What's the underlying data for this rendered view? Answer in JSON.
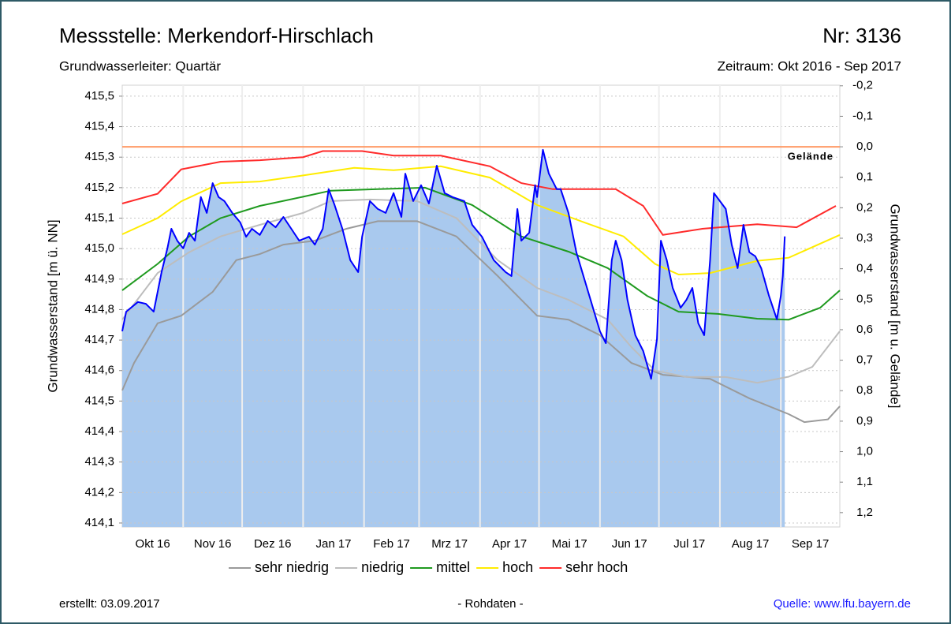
{
  "chart_data": {
    "type": "line",
    "title": "Messstelle: Merkendorf-Hirschlach",
    "station_number": "Nr: 3136",
    "aquifer": "Grundwasserleiter: Quartär",
    "period": "Zeitraum: Okt 2016 - Sep 2017",
    "ylabel": "Grundwasserstand [m ü. NN]",
    "y2label": "Grundwasserstand [m u. Gelände]",
    "created": "erstellt:  03.09.2017",
    "note": "- Rohdaten -",
    "source": "Quelle: www.lfu.bayern.de",
    "xlim": [
      0,
      365
    ],
    "xticks": [
      {
        "value": 15.5,
        "label": "Okt 16"
      },
      {
        "value": 46,
        "label": "Nov 16"
      },
      {
        "value": 76.5,
        "label": "Dez 16"
      },
      {
        "value": 107.5,
        "label": "Jan 17"
      },
      {
        "value": 137,
        "label": "Feb 17"
      },
      {
        "value": 166.5,
        "label": "Mrz 17"
      },
      {
        "value": 197,
        "label": "Apr 17"
      },
      {
        "value": 227.5,
        "label": "Mai 17"
      },
      {
        "value": 258,
        "label": "Jun 17"
      },
      {
        "value": 288.5,
        "label": "Jul 17"
      },
      {
        "value": 319.5,
        "label": "Aug 17"
      },
      {
        "value": 350,
        "label": "Sep 17"
      }
    ],
    "x_gridlines": [
      31,
      61,
      92,
      123,
      151,
      182,
      212,
      243,
      273,
      304,
      335
    ],
    "ylim": [
      414.087,
      415.536
    ],
    "yticks": [
      {
        "value": 414.1,
        "label": "414,1"
      },
      {
        "value": 414.2,
        "label": "414,2"
      },
      {
        "value": 414.3,
        "label": "414,3"
      },
      {
        "value": 414.4,
        "label": "414,4"
      },
      {
        "value": 414.5,
        "label": "414,5"
      },
      {
        "value": 414.6,
        "label": "414,6"
      },
      {
        "value": 414.7,
        "label": "414,7"
      },
      {
        "value": 414.8,
        "label": "414,8"
      },
      {
        "value": 414.9,
        "label": "414,9"
      },
      {
        "value": 415.0,
        "label": "415,0"
      },
      {
        "value": 415.1,
        "label": "415,1"
      },
      {
        "value": 415.2,
        "label": "415,2"
      },
      {
        "value": 415.3,
        "label": "415,3"
      },
      {
        "value": 415.4,
        "label": "415,4"
      },
      {
        "value": 415.5,
        "label": "415,5"
      }
    ],
    "y2lim": [
      1.247,
      -0.202
    ],
    "y2ticks": [
      {
        "value": -0.2,
        "label": "-0,2"
      },
      {
        "value": -0.1,
        "label": "-0,1"
      },
      {
        "value": 0,
        "label": "0,0"
      },
      {
        "value": 0.1,
        "label": "0,1"
      },
      {
        "value": 0.2,
        "label": "0,2"
      },
      {
        "value": 0.3,
        "label": "0,3"
      },
      {
        "value": 0.4,
        "label": "0,4"
      },
      {
        "value": 0.5,
        "label": "0,5"
      },
      {
        "value": 0.6,
        "label": "0,6"
      },
      {
        "value": 0.7,
        "label": "0,7"
      },
      {
        "value": 0.8,
        "label": "0,8"
      },
      {
        "value": 0.9,
        "label": "0,9"
      },
      {
        "value": 1.0,
        "label": "1,0"
      },
      {
        "value": 1.1,
        "label": "1,1"
      },
      {
        "value": 1.2,
        "label": "1,2"
      }
    ],
    "grid": true,
    "reference": {
      "label": "Gelände",
      "value": 0,
      "axis": "y2",
      "color": "#ff9a66"
    },
    "series": [
      {
        "name": "sehr niedrig",
        "color": "#9a9a9a",
        "x": [
          0,
          6,
          18,
          30,
          46,
          58,
          70,
          82,
          98,
          114,
          130,
          150,
          170,
          191,
          211,
          227,
          243,
          259,
          275,
          299,
          319,
          339,
          347,
          359,
          365
        ],
        "values": [
          414.535,
          414.625,
          414.755,
          414.78,
          414.858,
          414.962,
          414.982,
          415.013,
          415.026,
          415.065,
          415.09,
          415.09,
          415.04,
          414.91,
          414.78,
          414.767,
          414.716,
          414.625,
          414.586,
          414.573,
          414.509,
          414.457,
          414.431,
          414.44,
          414.483
        ]
      },
      {
        "name": "niedrig",
        "color": "#bdbdbd",
        "x": [
          0,
          18,
          34,
          50,
          70,
          92,
          106,
          126,
          150,
          170,
          191,
          211,
          227,
          247,
          259,
          271,
          287,
          307,
          323,
          339,
          351,
          365
        ],
        "values": [
          414.767,
          414.92,
          414.988,
          415.04,
          415.078,
          415.117,
          415.156,
          415.161,
          415.156,
          415.1,
          414.962,
          414.871,
          414.832,
          414.767,
          414.677,
          414.6,
          414.579,
          414.579,
          414.56,
          414.58,
          414.612,
          414.729
        ]
      },
      {
        "name": "mittel",
        "color": "#1f9a1f",
        "x": [
          0,
          18,
          34,
          50,
          70,
          92,
          106,
          130,
          154,
          178,
          203,
          227,
          247,
          267,
          283,
          303,
          323,
          339,
          355,
          365
        ],
        "values": [
          414.863,
          414.95,
          415.04,
          415.1,
          415.14,
          415.17,
          415.19,
          415.195,
          415.2,
          415.143,
          415.04,
          414.99,
          414.936,
          414.845,
          414.793,
          414.786,
          414.77,
          414.767,
          414.806,
          414.863
        ]
      },
      {
        "name": "hoch",
        "color": "#ffec00",
        "x": [
          0,
          18,
          30,
          50,
          70,
          92,
          118,
          138,
          162,
          187,
          211,
          235,
          255,
          271,
          283,
          299,
          323,
          339,
          365
        ],
        "values": [
          415.047,
          415.1,
          415.155,
          415.215,
          415.22,
          415.24,
          415.265,
          415.257,
          415.27,
          415.233,
          415.143,
          415.086,
          415.04,
          414.95,
          414.915,
          414.92,
          414.96,
          414.97,
          415.045
        ]
      },
      {
        "name": "sehr hoch",
        "color": "#ff2a2a",
        "x": [
          0,
          18,
          30,
          50,
          70,
          92,
          102,
          122,
          138,
          162,
          187,
          203,
          219,
          251,
          265,
          275,
          295,
          323,
          343,
          363
        ],
        "values": [
          415.148,
          415.18,
          415.26,
          415.285,
          415.29,
          415.3,
          415.32,
          415.32,
          415.305,
          415.305,
          415.27,
          415.215,
          415.195,
          415.195,
          415.14,
          415.045,
          415.065,
          415.08,
          415.07,
          415.14
        ]
      }
    ],
    "measured": {
      "color": "#0000ff",
      "fill": "#a9c9ee",
      "x": [
        0,
        2,
        8,
        12,
        16,
        20,
        23,
        25,
        28,
        31,
        34,
        37,
        40,
        43,
        46,
        49,
        52,
        56,
        60,
        63,
        66,
        70,
        74,
        78,
        82,
        86,
        90,
        95,
        98,
        102,
        105,
        108,
        112,
        116,
        120,
        122,
        126,
        130,
        134,
        138,
        142,
        144,
        148,
        152,
        156,
        160,
        164,
        168,
        174,
        178,
        183,
        189,
        195,
        198,
        201,
        203,
        207,
        210,
        211,
        214,
        217,
        221,
        223,
        227,
        231,
        237,
        243,
        246,
        249,
        251,
        254,
        257,
        261,
        265,
        269,
        272,
        274,
        277,
        280,
        284,
        287,
        290,
        293,
        296,
        299,
        301,
        304,
        307,
        310,
        313,
        316,
        319,
        322,
        325,
        329,
        333,
        335,
        336,
        337
      ],
      "values": [
        414.729,
        414.793,
        414.825,
        414.819,
        414.793,
        414.923,
        415.001,
        415.065,
        415.026,
        415.001,
        415.052,
        415.026,
        415.169,
        415.117,
        415.215,
        415.169,
        415.156,
        415.117,
        415.086,
        415.039,
        415.065,
        415.045,
        415.091,
        415.07,
        415.104,
        415.065,
        415.026,
        415.039,
        415.013,
        415.065,
        415.195,
        415.143,
        415.065,
        414.962,
        414.923,
        415.039,
        415.156,
        415.13,
        415.117,
        415.182,
        415.104,
        415.246,
        415.156,
        415.208,
        415.148,
        415.272,
        415.182,
        415.169,
        415.156,
        415.078,
        415.039,
        414.962,
        414.923,
        414.91,
        415.13,
        415.026,
        415.052,
        415.208,
        415.169,
        415.324,
        415.246,
        415.195,
        415.195,
        415.117,
        414.988,
        414.858,
        414.729,
        414.69,
        414.962,
        415.026,
        414.962,
        414.832,
        414.716,
        414.664,
        414.573,
        414.703,
        415.026,
        414.962,
        414.871,
        414.806,
        414.832,
        414.871,
        414.755,
        414.716,
        414.962,
        415.182,
        415.156,
        415.13,
        415.013,
        414.936,
        415.078,
        414.988,
        414.975,
        414.936,
        414.845,
        414.768,
        414.845,
        414.91,
        415.04
      ]
    }
  }
}
